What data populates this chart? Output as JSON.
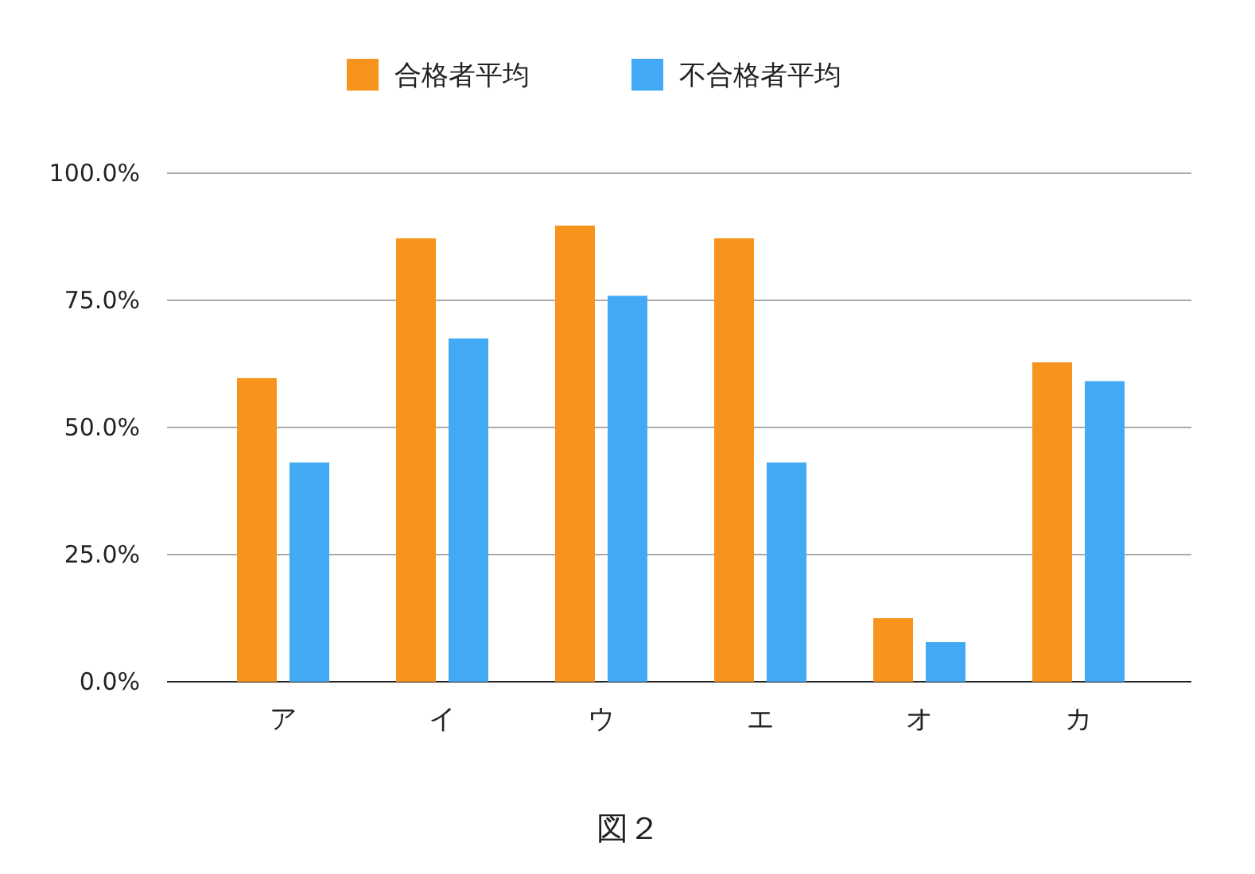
{
  "chart_data": {
    "type": "bar",
    "categories": [
      "ア",
      "イ",
      "ウ",
      "エ",
      "オ",
      "カ"
    ],
    "series": [
      {
        "name": "合格者平均",
        "color": "#f7941d",
        "values": [
          59.7,
          87.2,
          89.7,
          87.2,
          12.5,
          62.8
        ]
      },
      {
        "name": "不合格者平均",
        "color": "#42a9f5",
        "values": [
          43.1,
          67.5,
          75.9,
          43.1,
          7.8,
          59.1
        ]
      }
    ],
    "ylim": [
      0,
      100
    ],
    "yticks": [
      {
        "value": 0,
        "label": "0.0%"
      },
      {
        "value": 25,
        "label": "25.0%"
      },
      {
        "value": 50,
        "label": "50.0%"
      },
      {
        "value": 75,
        "label": "75.0%"
      },
      {
        "value": 100,
        "label": "100.0%"
      }
    ],
    "grid": "y",
    "legend": "top",
    "annotations": [
      "図２"
    ]
  }
}
